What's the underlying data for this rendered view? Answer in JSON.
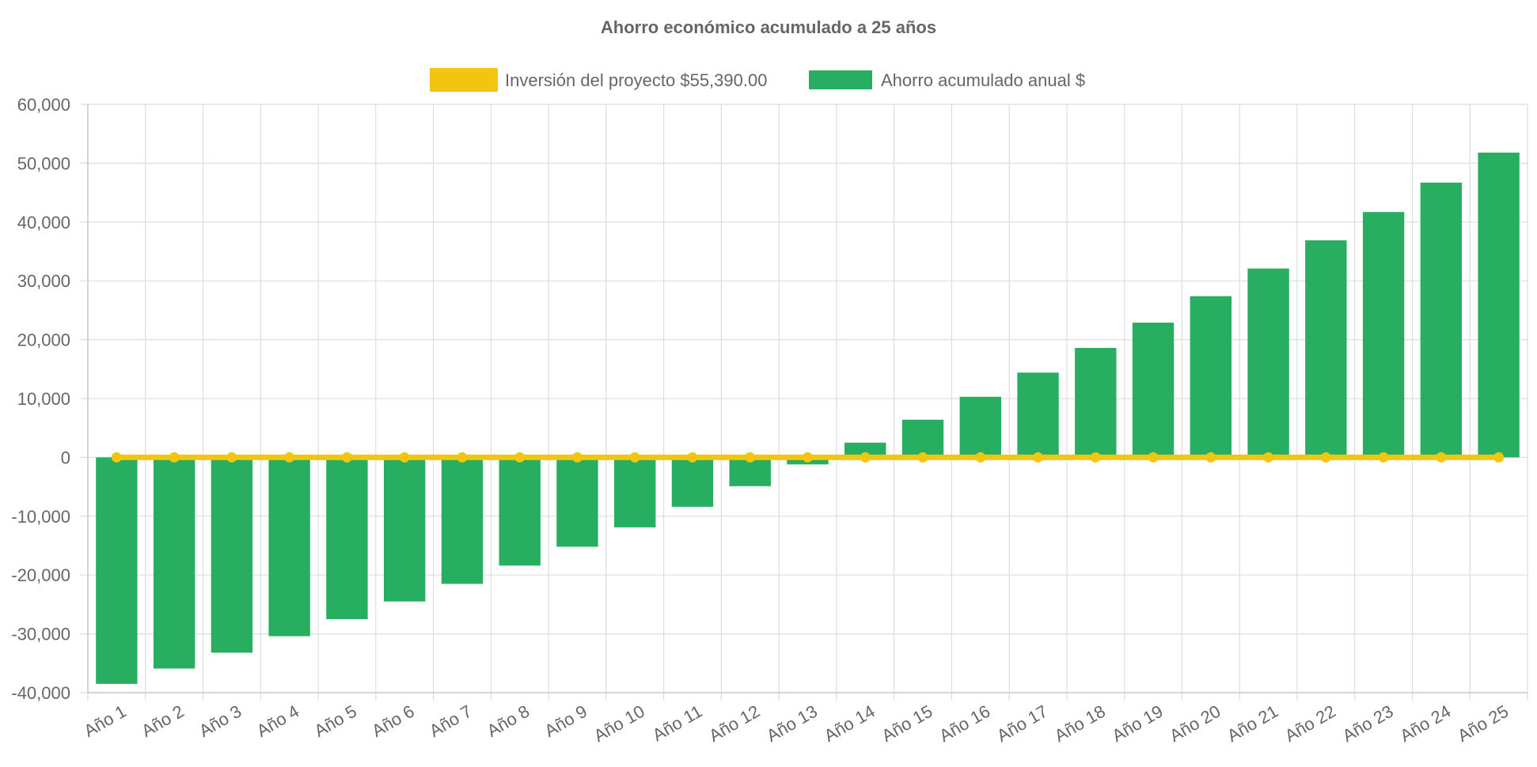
{
  "chart_data": {
    "type": "bar",
    "title": "Ahorro económico acumulado a 25 años",
    "categories": [
      "Año 1",
      "Año 2",
      "Año 3",
      "Año 4",
      "Año 5",
      "Año 6",
      "Año 7",
      "Año 8",
      "Año 9",
      "Año 10",
      "Año 11",
      "Año 12",
      "Año 13",
      "Año 14",
      "Año 15",
      "Año 16",
      "Año 17",
      "Año 18",
      "Año 19",
      "Año 20",
      "Año 21",
      "Año 22",
      "Año 23",
      "Año 24",
      "Año 25"
    ],
    "series": [
      {
        "name": "Inversión del proyecto $55,390.00",
        "kind": "line",
        "color": "#f2c511",
        "values": [
          0,
          0,
          0,
          0,
          0,
          0,
          0,
          0,
          0,
          0,
          0,
          0,
          0,
          0,
          0,
          0,
          0,
          0,
          0,
          0,
          0,
          0,
          0,
          0,
          0
        ]
      },
      {
        "name": "Ahorro acumulado anual $",
        "kind": "bar",
        "color": "#27ae60",
        "values": [
          -38500,
          -35900,
          -33200,
          -30400,
          -27500,
          -24500,
          -21500,
          -18400,
          -15200,
          -11900,
          -8400,
          -4900,
          -1200,
          2500,
          6400,
          10300,
          14400,
          18600,
          22900,
          27400,
          32100,
          36900,
          41700,
          46700,
          51800
        ]
      }
    ],
    "ylim": [
      -40000,
      60000
    ],
    "yticks": [
      60000,
      50000,
      40000,
      30000,
      20000,
      10000,
      0,
      -10000,
      -20000,
      -30000,
      -40000
    ],
    "ytick_labels": [
      "60,000",
      "50,000",
      "40,000",
      "30,000",
      "20,000",
      "10,000",
      "0",
      "-10,000",
      "-20,000",
      "-30,000",
      "-40,000"
    ],
    "grid": true,
    "legend_position": "top-center",
    "xlabel": "",
    "ylabel": ""
  }
}
